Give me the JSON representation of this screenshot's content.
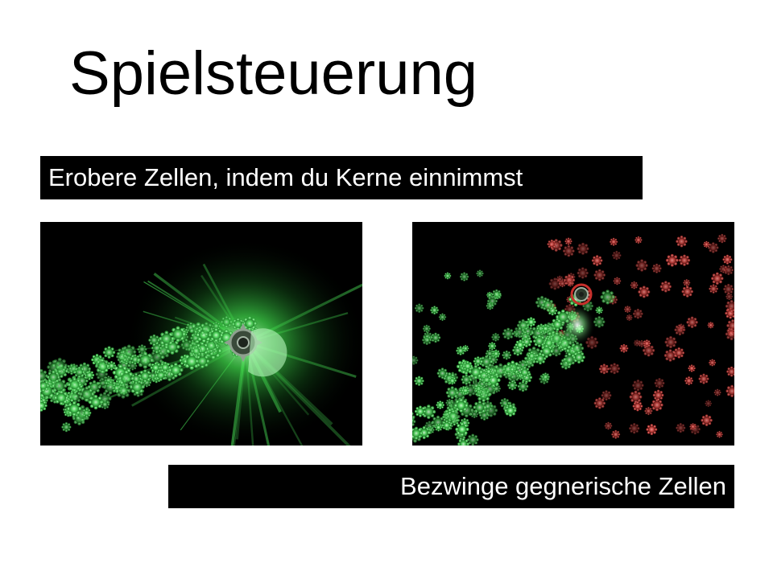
{
  "title": "Spielsteuerung",
  "captions": {
    "top": "Erobere Zellen, indem du Kerne einnimmst",
    "bottom": "Bezwinge gegnerische Zellen"
  },
  "colors": {
    "player_cells": "#3fbf4a",
    "enemy_cells": "#c8403c",
    "glow": "#5cff66",
    "background": "#000000"
  },
  "screenshots": [
    {
      "depicts": "green-cell-swarm-with-glowing-core"
    },
    {
      "depicts": "green-swarm-attacking-red-cells"
    }
  ]
}
